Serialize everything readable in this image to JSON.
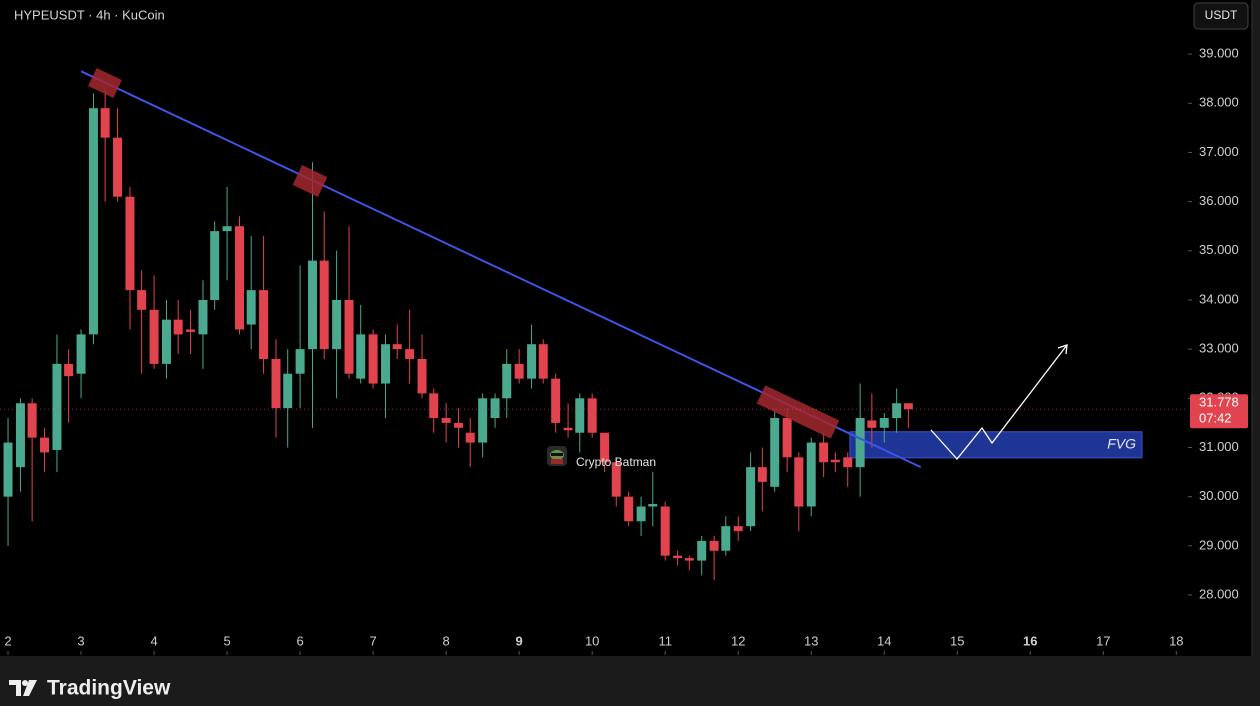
{
  "chart_data": {
    "type": "candlestick",
    "title": "HYPEUSDT · 4h · KuCoin",
    "currency": "USDT",
    "up_color": "#4aa98f",
    "down_color": "#e2444f",
    "x": [
      2,
      2.17,
      2.33,
      2.5,
      2.67,
      2.83,
      3,
      3.17,
      3.33,
      3.5,
      3.67,
      3.83,
      4,
      4.17,
      4.33,
      4.5,
      4.67,
      4.83,
      5,
      5.17,
      5.33,
      5.5,
      5.67,
      5.83,
      6,
      6.17,
      6.33,
      6.5,
      6.67,
      6.83,
      7,
      7.17,
      7.33,
      7.5,
      7.67,
      7.83,
      8,
      8.17,
      8.33,
      8.5,
      8.67,
      8.83,
      9,
      9.17,
      9.33,
      9.5,
      9.67,
      9.83,
      10,
      10.17,
      10.33,
      10.5,
      10.67,
      10.83,
      11,
      11.17,
      11.33,
      11.5,
      11.67,
      11.83,
      12,
      12.17,
      12.33,
      12.5,
      12.67,
      12.83,
      13,
      13.17,
      13.33,
      13.5,
      13.67,
      13.83,
      14,
      14.17,
      14.33
    ],
    "open": [
      30.0,
      30.6,
      31.9,
      31.2,
      30.95,
      32.7,
      32.5,
      33.3,
      37.9,
      37.3,
      36.1,
      34.2,
      33.8,
      32.7,
      33.6,
      33.4,
      33.3,
      34.0,
      35.4,
      35.5,
      33.5,
      34.2,
      32.8,
      31.8,
      32.5,
      33.0,
      34.8,
      33.0,
      34.0,
      32.4,
      33.3,
      32.3,
      33.1,
      33.0,
      32.8,
      32.1,
      31.6,
      31.5,
      31.3,
      31.1,
      31.6,
      32.0,
      32.7,
      32.4,
      33.1,
      32.4,
      31.4,
      31.3,
      32.0,
      31.3,
      30.7,
      30.0,
      29.5,
      29.8,
      29.8,
      28.8,
      28.75,
      28.7,
      29.1,
      28.9,
      29.4,
      29.4,
      30.6,
      30.2,
      31.6,
      30.8,
      29.8,
      31.1,
      30.75,
      30.8,
      30.6,
      31.55,
      31.4,
      31.6,
      31.9
    ],
    "high": [
      31.6,
      32.0,
      32.0,
      31.4,
      33.3,
      33.0,
      33.4,
      38.2,
      38.3,
      37.9,
      36.3,
      34.6,
      34.5,
      34.0,
      34.0,
      33.8,
      34.4,
      35.6,
      36.3,
      35.7,
      35.3,
      35.3,
      33.2,
      33.0,
      34.7,
      36.8,
      35.8,
      35.0,
      35.5,
      33.9,
      33.4,
      33.3,
      33.5,
      33.8,
      33.3,
      32.2,
      31.9,
      31.8,
      31.6,
      32.1,
      32.1,
      33.0,
      33.0,
      33.5,
      33.2,
      32.5,
      31.9,
      32.1,
      32.1,
      31.3,
      30.8,
      30.1,
      30.0,
      30.5,
      29.9,
      28.9,
      28.8,
      29.2,
      29.2,
      29.6,
      29.6,
      30.9,
      31.0,
      31.8,
      31.8,
      30.9,
      31.2,
      31.3,
      30.9,
      30.9,
      32.3,
      32.1,
      31.7,
      32.2,
      31.9
    ],
    "low": [
      29.0,
      30.1,
      29.5,
      30.5,
      30.5,
      31.5,
      32.0,
      33.1,
      36.0,
      36.0,
      33.4,
      32.5,
      32.6,
      32.4,
      32.9,
      32.9,
      32.6,
      33.8,
      34.4,
      33.3,
      33.0,
      32.5,
      31.2,
      31.0,
      31.8,
      31.4,
      32.8,
      32.0,
      32.4,
      32.3,
      32.2,
      31.6,
      32.8,
      32.3,
      32.0,
      31.3,
      31.1,
      31.0,
      30.6,
      30.8,
      31.4,
      31.6,
      32.3,
      32.2,
      32.3,
      31.3,
      31.2,
      30.9,
      31.2,
      30.5,
      29.8,
      29.4,
      29.2,
      29.4,
      28.7,
      28.6,
      28.5,
      28.4,
      28.3,
      28.8,
      29.1,
      29.3,
      29.7,
      30.1,
      30.5,
      29.3,
      29.6,
      30.4,
      30.5,
      30.2,
      30.0,
      31.0,
      31.1,
      31.3,
      31.4
    ],
    "close": [
      31.1,
      31.9,
      31.2,
      30.9,
      32.7,
      32.45,
      33.3,
      37.9,
      37.3,
      36.1,
      34.2,
      33.8,
      32.7,
      33.6,
      33.3,
      33.35,
      34.0,
      35.4,
      35.5,
      33.4,
      34.2,
      32.8,
      31.8,
      32.5,
      33.0,
      34.8,
      33.0,
      34.0,
      32.5,
      33.3,
      32.3,
      33.1,
      33.0,
      32.8,
      32.1,
      31.6,
      31.5,
      31.4,
      31.1,
      32.0,
      32.0,
      32.7,
      32.4,
      33.1,
      32.4,
      31.5,
      31.35,
      32.0,
      31.3,
      30.7,
      30.0,
      29.5,
      29.8,
      29.85,
      28.8,
      28.75,
      28.7,
      29.1,
      28.9,
      29.4,
      29.3,
      30.6,
      30.3,
      31.6,
      30.8,
      29.8,
      31.1,
      30.7,
      30.7,
      30.6,
      31.6,
      31.4,
      31.6,
      31.9,
      31.778
    ],
    "xlim": [
      1.89,
      18.16
    ],
    "ylim": [
      26.78,
      40.1
    ],
    "xticks": [
      2,
      3,
      4,
      5,
      6,
      7,
      8,
      9,
      10,
      11,
      12,
      13,
      14,
      15,
      16,
      17,
      18
    ],
    "yticks": [
      {
        "value": 28,
        "label": "28.000"
      },
      {
        "value": 29,
        "label": "29.000"
      },
      {
        "value": 30,
        "label": "30.000"
      },
      {
        "value": 31,
        "label": "31.000"
      },
      {
        "value": 32,
        "label": "32.000"
      },
      {
        "value": 33,
        "label": "33.000"
      },
      {
        "value": 34,
        "label": "34.000"
      },
      {
        "value": 35,
        "label": "35.000"
      },
      {
        "value": 36,
        "label": "36.000"
      },
      {
        "value": 37,
        "label": "37.000"
      },
      {
        "value": 38,
        "label": "38.000"
      },
      {
        "value": 39,
        "label": "39.000"
      }
    ],
    "last_price": 31.778,
    "countdown": "07:42",
    "trendline": {
      "x": [
        3.0,
        14.5
      ],
      "y": [
        38.65,
        30.6
      ]
    },
    "fvg": {
      "label": "FVG",
      "x": [
        13.53,
        17.53
      ],
      "y": [
        30.79,
        31.32
      ]
    },
    "watermark": "Crypto Batman"
  },
  "brand": "TradingView"
}
